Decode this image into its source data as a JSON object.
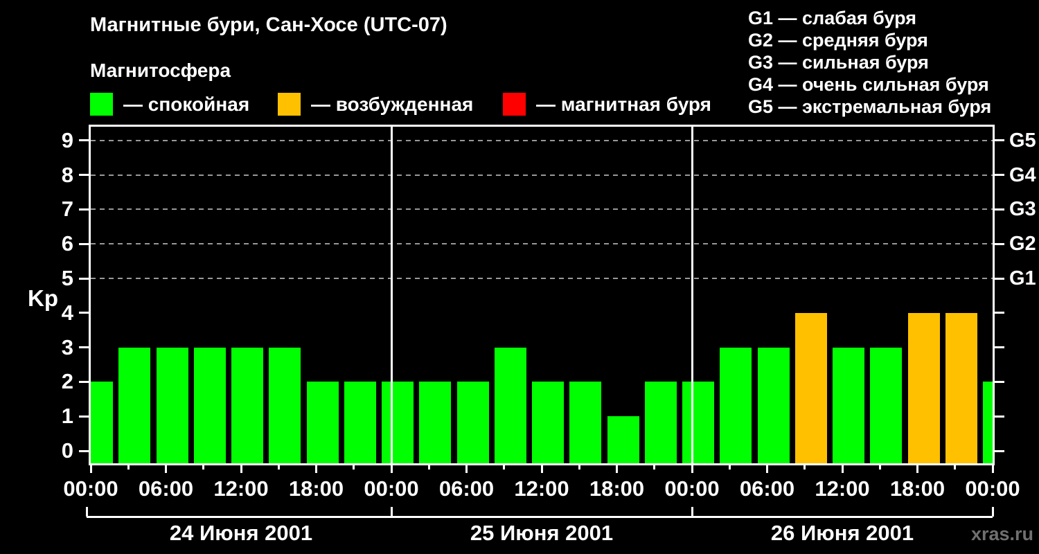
{
  "title": "Магнитные бури, Сан-Хосе (UTC-07)",
  "subtitle": "Магнитосфера",
  "watermark": "xras.ru",
  "legend": {
    "items": [
      {
        "state": "quiet",
        "label": "— спокойная"
      },
      {
        "state": "excited",
        "label": "— возбужденная"
      },
      {
        "state": "storm",
        "label": "— магнитная буря"
      }
    ]
  },
  "storm_scale_legend": [
    "G1 — слабая буря",
    "G2 — средняя буря",
    "G3 — сильная буря",
    "G4 — очень сильная буря",
    "G5 — экстремальная буря"
  ],
  "chart_data": {
    "type": "bar",
    "ylabel": "Kp",
    "ylim": [
      0,
      9
    ],
    "y_ticks": [
      0,
      1,
      2,
      3,
      4,
      5,
      6,
      7,
      8,
      9
    ],
    "gridlines_kp": [
      5,
      6,
      7,
      8,
      9
    ],
    "grid_style": "dashed",
    "bar_period_hours": 3,
    "x_range_hours": [
      0,
      72
    ],
    "bars": [
      {
        "hour": 0,
        "kp": 2,
        "state": "quiet"
      },
      {
        "hour": 3,
        "kp": 3,
        "state": "quiet"
      },
      {
        "hour": 6,
        "kp": 3,
        "state": "quiet"
      },
      {
        "hour": 9,
        "kp": 3,
        "state": "quiet"
      },
      {
        "hour": 12,
        "kp": 3,
        "state": "quiet"
      },
      {
        "hour": 15,
        "kp": 3,
        "state": "quiet"
      },
      {
        "hour": 18,
        "kp": 2,
        "state": "quiet"
      },
      {
        "hour": 21,
        "kp": 2,
        "state": "quiet"
      },
      {
        "hour": 24,
        "kp": 2,
        "state": "quiet"
      },
      {
        "hour": 27,
        "kp": 2,
        "state": "quiet"
      },
      {
        "hour": 30,
        "kp": 2,
        "state": "quiet"
      },
      {
        "hour": 33,
        "kp": 3,
        "state": "quiet"
      },
      {
        "hour": 36,
        "kp": 2,
        "state": "quiet"
      },
      {
        "hour": 39,
        "kp": 2,
        "state": "quiet"
      },
      {
        "hour": 42,
        "kp": 1,
        "state": "quiet"
      },
      {
        "hour": 45,
        "kp": 2,
        "state": "quiet"
      },
      {
        "hour": 48,
        "kp": 2,
        "state": "quiet"
      },
      {
        "hour": 51,
        "kp": 3,
        "state": "quiet"
      },
      {
        "hour": 54,
        "kp": 3,
        "state": "quiet"
      },
      {
        "hour": 57,
        "kp": 4,
        "state": "excited"
      },
      {
        "hour": 60,
        "kp": 3,
        "state": "quiet"
      },
      {
        "hour": 63,
        "kp": 3,
        "state": "quiet"
      },
      {
        "hour": 66,
        "kp": 4,
        "state": "excited"
      },
      {
        "hour": 69,
        "kp": 4,
        "state": "excited"
      },
      {
        "hour": 72,
        "kp": 2,
        "state": "quiet"
      }
    ],
    "x_tick_labels": [
      {
        "hour": 0,
        "label": "00:00"
      },
      {
        "hour": 6,
        "label": "06:00"
      },
      {
        "hour": 12,
        "label": "12:00"
      },
      {
        "hour": 18,
        "label": "18:00"
      },
      {
        "hour": 24,
        "label": "00:00"
      },
      {
        "hour": 30,
        "label": "06:00"
      },
      {
        "hour": 36,
        "label": "12:00"
      },
      {
        "hour": 42,
        "label": "18:00"
      },
      {
        "hour": 48,
        "label": "00:00"
      },
      {
        "hour": 54,
        "label": "06:00"
      },
      {
        "hour": 60,
        "label": "12:00"
      },
      {
        "hour": 66,
        "label": "18:00"
      },
      {
        "hour": 72,
        "label": "00:00"
      }
    ],
    "x_minor_tick_step_hours": 3,
    "day_separator_hours": [
      24,
      48
    ],
    "right_axis_labels": [
      {
        "label": "G5",
        "kp": 9
      },
      {
        "label": "G4",
        "kp": 8
      },
      {
        "label": "G3",
        "kp": 7
      },
      {
        "label": "G2",
        "kp": 6
      },
      {
        "label": "G1",
        "kp": 5
      }
    ],
    "days": [
      {
        "label": "24 Июня 2001",
        "start_hour": 0,
        "end_hour": 24
      },
      {
        "label": "25 Июня 2001",
        "start_hour": 24,
        "end_hour": 48
      },
      {
        "label": "26 Июня 2001",
        "start_hour": 48,
        "end_hour": 72
      }
    ],
    "colors": {
      "quiet": "#00FF00",
      "excited": "#FFC000",
      "storm": "#FF0000",
      "grid": "#999999",
      "frame": "#FFFFFF",
      "watermark": "#707070",
      "background": "#000000"
    }
  }
}
